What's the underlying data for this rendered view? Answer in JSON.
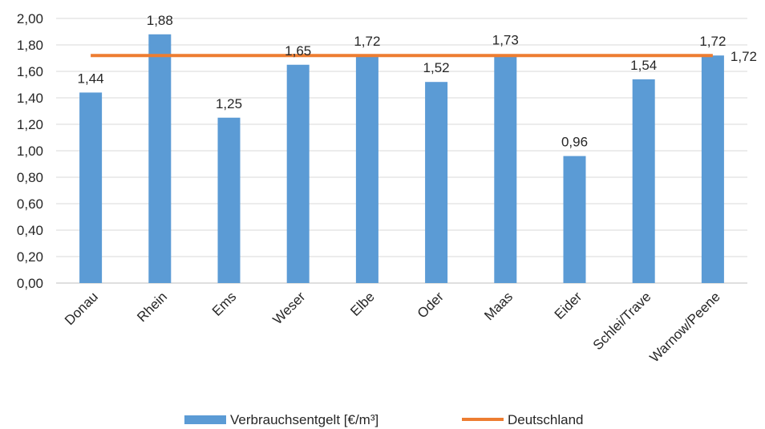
{
  "chart_data": {
    "type": "bar",
    "categories": [
      "Donau",
      "Rhein",
      "Ems",
      "Weser",
      "Elbe",
      "Oder",
      "Maas",
      "Eider",
      "Schlei/Trave",
      "Warnow/Peene"
    ],
    "series": [
      {
        "name": "Verbrauchsentgelt  [€/m³]",
        "type": "bar",
        "color": "#5b9bd5",
        "values": [
          1.44,
          1.88,
          1.25,
          1.65,
          1.72,
          1.52,
          1.73,
          0.96,
          1.54,
          1.72
        ],
        "labels": [
          "1,44",
          "1,88",
          "1,25",
          "1,65",
          "1,72",
          "1,52",
          "1,73",
          "0,96",
          "1,54",
          "1,72"
        ]
      },
      {
        "name": "Deutschland",
        "type": "line",
        "color": "#ed7d31",
        "value": 1.72,
        "end_label": "1,72"
      }
    ],
    "ylim": [
      0,
      2.0
    ],
    "yticks": [
      "0,00",
      "0,20",
      "0,40",
      "0,60",
      "0,80",
      "1,00",
      "1,20",
      "1,40",
      "1,60",
      "1,80",
      "2,00"
    ],
    "grid": true,
    "legend_position": "bottom"
  }
}
